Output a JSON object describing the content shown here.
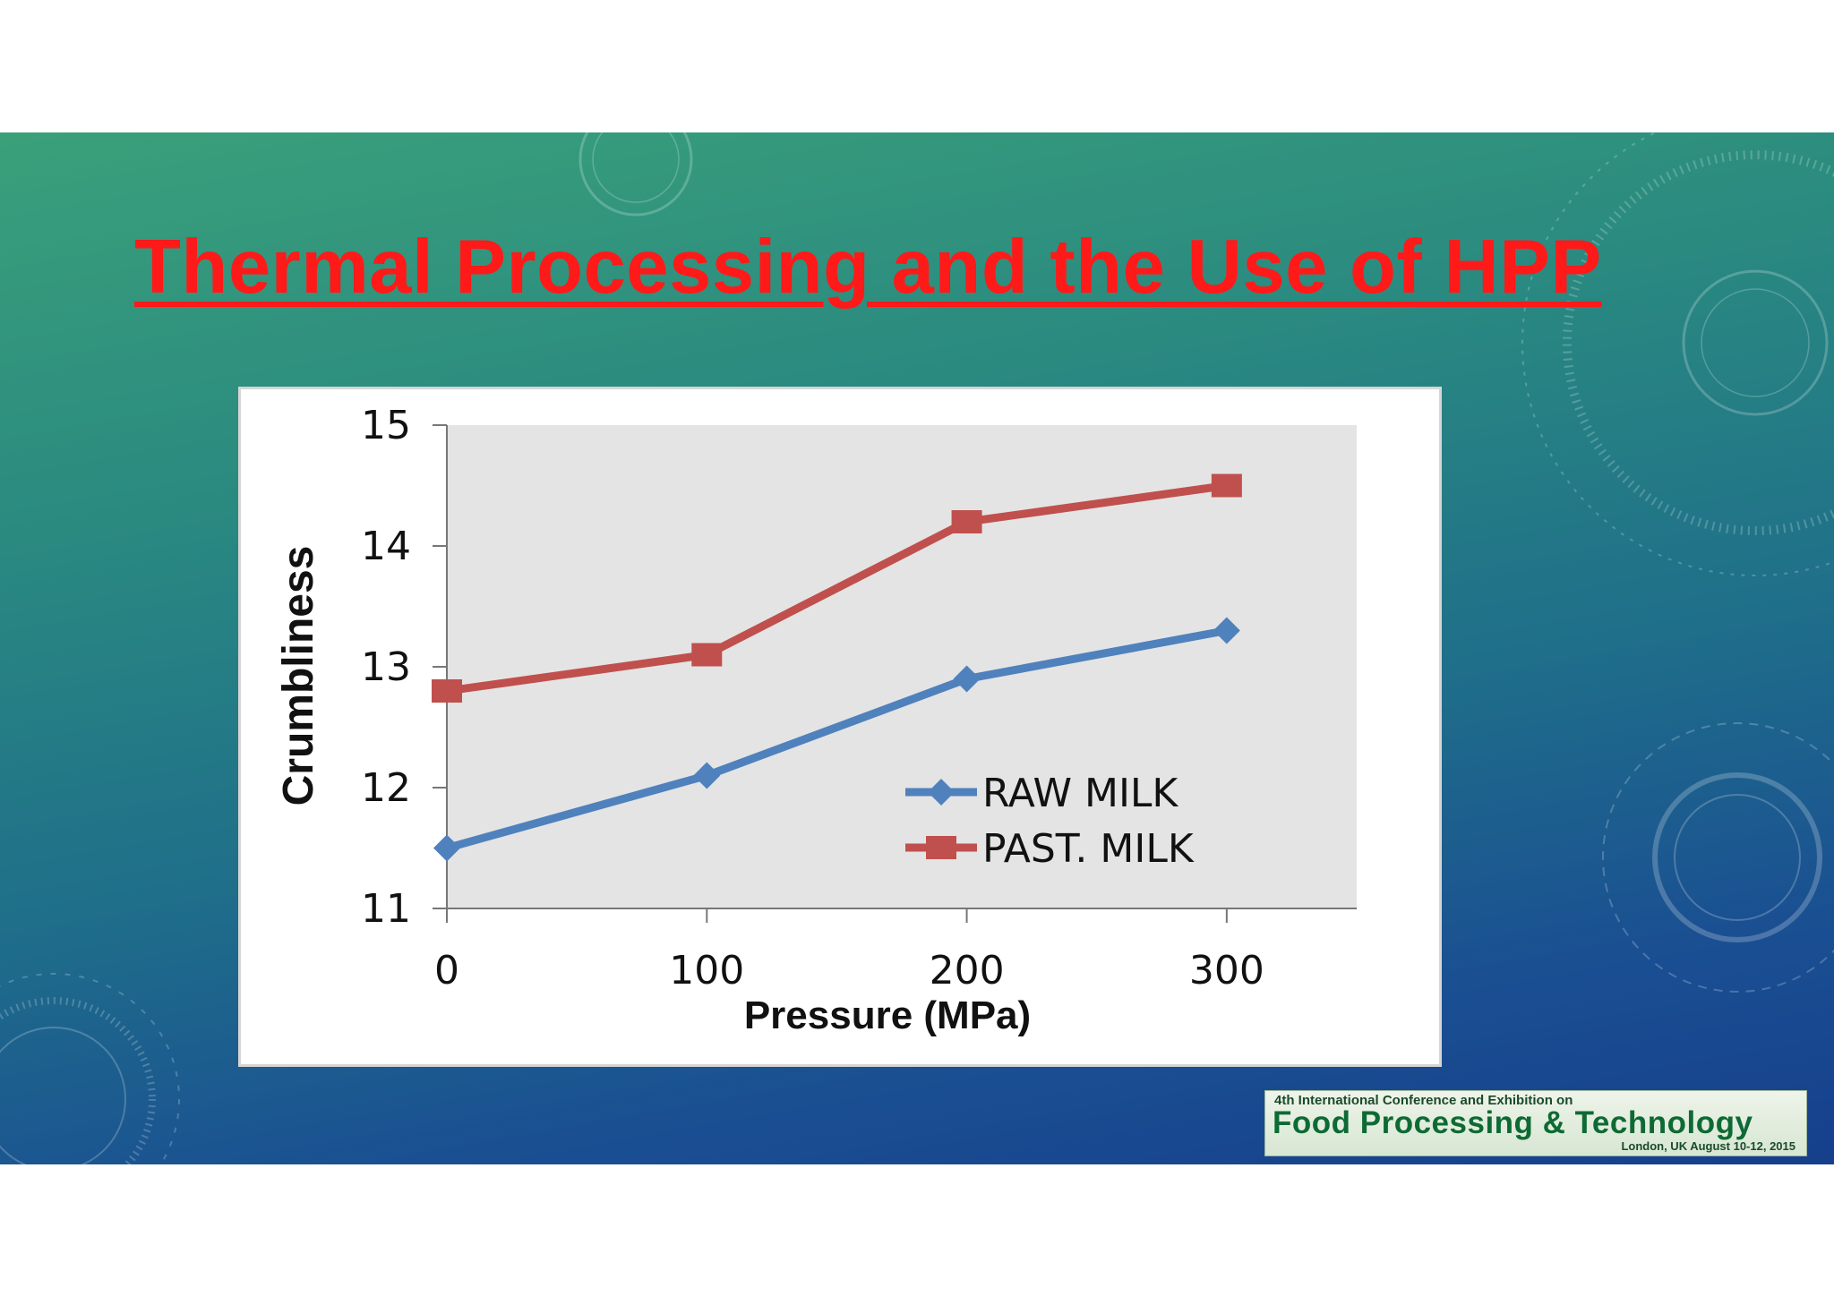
{
  "slide": {
    "title": "Thermal Processing and the Use of HPP"
  },
  "logo": {
    "line1": "4th International Conference and Exhibition on",
    "line2": "Food Processing & Technology",
    "line3": "London, UK   August 10-12, 2015"
  },
  "chart_data": {
    "type": "line",
    "title": "",
    "xlabel": "Pressure (MPa)",
    "ylabel": "Crumbliness",
    "x": [
      0,
      100,
      200,
      300
    ],
    "xticks": [
      "0",
      "100",
      "200",
      "300"
    ],
    "yticks": [
      "11",
      "12",
      "13",
      "14",
      "15"
    ],
    "ylim": [
      11,
      15
    ],
    "xlim": [
      0,
      350
    ],
    "series": [
      {
        "name": "RAW MILK",
        "values": [
          11.5,
          12.1,
          12.9,
          13.3
        ],
        "color": "#4f81bd",
        "marker": "diamond"
      },
      {
        "name": "PAST. MILK",
        "values": [
          12.8,
          13.1,
          14.2,
          14.5
        ],
        "color": "#c0504d",
        "marker": "square"
      }
    ],
    "grid": false,
    "legend": "bottom-right",
    "plot_background": "#e4e4e4"
  }
}
